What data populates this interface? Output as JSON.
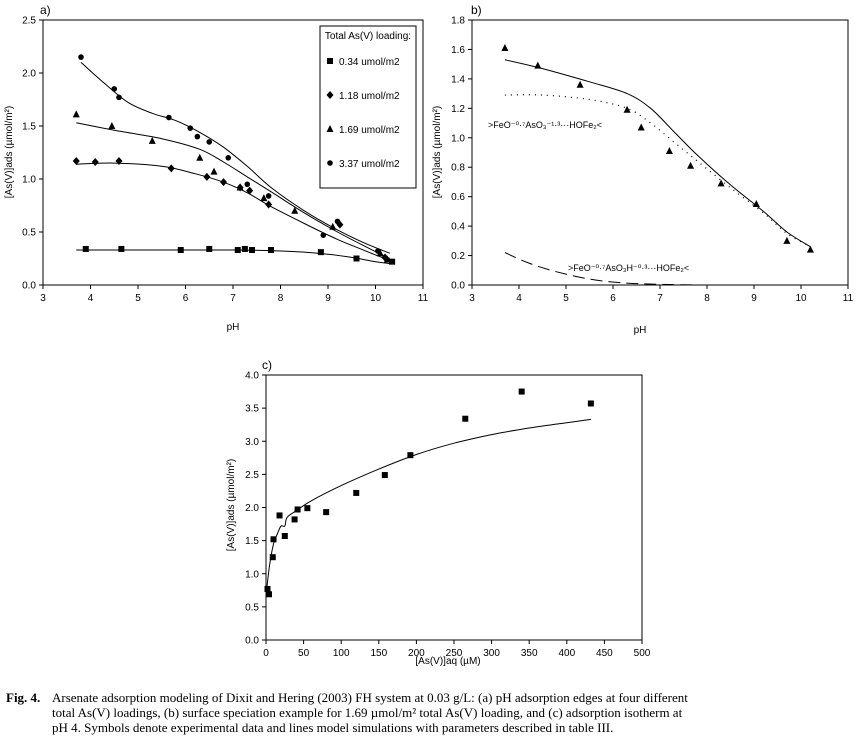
{
  "caption": {
    "fig_label": "Fig. 4.",
    "lines": [
      "Arsenate adsorption modeling of Dixit and Hering (2003) FH system at 0.03 g/L: (a) pH adsorption edges at four different",
      "total As(V) loadings, (b) surface speciation example for 1.69 µmol/m² total As(V) loading, and (c) adsorption isotherm at",
      "pH 4. Symbols denote experimental data and lines model simulations with parameters described in table III."
    ]
  },
  "chart_data": [
    {
      "panel": "a)",
      "type": "scatter",
      "xlabel": "pH",
      "ylabel": "[As(V)]ads (µmol/m²)",
      "xlim": [
        3,
        11
      ],
      "ylim": [
        0,
        2.5
      ],
      "xticks": [
        "3",
        "4",
        "5",
        "6",
        "7",
        "8",
        "9",
        "10",
        "11"
      ],
      "yticks": [
        "0.0",
        "0.5",
        "1.0",
        "1.5",
        "2.0",
        "2.5"
      ],
      "legend_title": "Total As(V) loading:",
      "legend_position": "top-right",
      "series": [
        {
          "name": "0.34 umol/m2",
          "marker": "square",
          "points": [
            [
              3.9,
              0.34
            ],
            [
              4.65,
              0.34
            ],
            [
              5.9,
              0.33
            ],
            [
              6.5,
              0.34
            ],
            [
              7.1,
              0.33
            ],
            [
              7.25,
              0.34
            ],
            [
              7.4,
              0.33
            ],
            [
              7.8,
              0.33
            ],
            [
              8.85,
              0.31
            ],
            [
              9.6,
              0.25
            ],
            [
              10.35,
              0.22
            ]
          ],
          "model": [
            [
              3.7,
              0.33
            ],
            [
              5,
              0.33
            ],
            [
              6,
              0.33
            ],
            [
              7,
              0.33
            ],
            [
              7.8,
              0.325
            ],
            [
              8.5,
              0.31
            ],
            [
              9,
              0.29
            ],
            [
              9.5,
              0.26
            ],
            [
              10,
              0.22
            ],
            [
              10.35,
              0.2
            ]
          ]
        },
        {
          "name": "1.18 umol/m2",
          "marker": "diamond",
          "points": [
            [
              3.7,
              1.17
            ],
            [
              4.1,
              1.16
            ],
            [
              4.6,
              1.17
            ],
            [
              5.7,
              1.1
            ],
            [
              6.45,
              1.02
            ],
            [
              6.8,
              0.97
            ],
            [
              7.15,
              0.92
            ],
            [
              7.35,
              0.89
            ],
            [
              7.75,
              0.76
            ],
            [
              9.25,
              0.57
            ],
            [
              10.2,
              0.26
            ]
          ],
          "model": [
            [
              3.7,
              1.14
            ],
            [
              4.5,
              1.15
            ],
            [
              5.5,
              1.12
            ],
            [
              6.2,
              1.05
            ],
            [
              6.8,
              0.97
            ],
            [
              7.3,
              0.87
            ],
            [
              7.8,
              0.74
            ],
            [
              8.5,
              0.58
            ],
            [
              9.2,
              0.43
            ],
            [
              9.8,
              0.32
            ],
            [
              10.3,
              0.23
            ]
          ]
        },
        {
          "name": "1.69 umol/m2",
          "marker": "triangle",
          "points": [
            [
              3.7,
              1.61
            ],
            [
              4.45,
              1.5
            ],
            [
              5.3,
              1.36
            ],
            [
              6.3,
              1.2
            ],
            [
              6.6,
              1.07
            ],
            [
              7.15,
              0.92
            ],
            [
              7.65,
              0.82
            ],
            [
              8.3,
              0.7
            ],
            [
              9.1,
              0.55
            ],
            [
              10.1,
              0.3
            ],
            [
              10.25,
              0.24
            ]
          ],
          "model": [
            [
              3.7,
              1.53
            ],
            [
              4.5,
              1.46
            ],
            [
              5.5,
              1.38
            ],
            [
              6.3,
              1.28
            ],
            [
              6.8,
              1.16
            ],
            [
              7.3,
              1.02
            ],
            [
              7.8,
              0.88
            ],
            [
              8.5,
              0.68
            ],
            [
              9.2,
              0.5
            ],
            [
              9.8,
              0.36
            ],
            [
              10.3,
              0.25
            ]
          ]
        },
        {
          "name": "3.37 umol/m2",
          "marker": "circle",
          "points": [
            [
              3.8,
              2.15
            ],
            [
              4.5,
              1.85
            ],
            [
              4.6,
              1.77
            ],
            [
              5.65,
              1.58
            ],
            [
              6.1,
              1.48
            ],
            [
              6.25,
              1.4
            ],
            [
              6.5,
              1.35
            ],
            [
              6.9,
              1.2
            ],
            [
              7.3,
              0.95
            ],
            [
              7.75,
              0.84
            ],
            [
              8.9,
              0.47
            ],
            [
              9.2,
              0.6
            ],
            [
              10.05,
              0.32
            ]
          ],
          "model": [
            [
              3.8,
              2.1
            ],
            [
              4.3,
              1.9
            ],
            [
              4.8,
              1.72
            ],
            [
              5.3,
              1.62
            ],
            [
              5.8,
              1.55
            ],
            [
              6.3,
              1.44
            ],
            [
              6.8,
              1.3
            ],
            [
              7.3,
              1.12
            ],
            [
              7.8,
              0.92
            ],
            [
              8.5,
              0.7
            ],
            [
              9.2,
              0.52
            ],
            [
              9.8,
              0.39
            ],
            [
              10.3,
              0.3
            ]
          ]
        }
      ]
    },
    {
      "panel": "b)",
      "type": "scatter",
      "xlabel": "pH",
      "ylabel": "[As(V)]ads (µmol/m²)",
      "xlim": [
        3,
        11
      ],
      "ylim": [
        0,
        1.8
      ],
      "xticks": [
        "3",
        "4",
        "5",
        "6",
        "7",
        "8",
        "9",
        "10",
        "11"
      ],
      "yticks": [
        "0.0",
        "0.2",
        "0.4",
        "0.6",
        "0.8",
        "1.0",
        "1.2",
        "1.4",
        "1.6",
        "1.8"
      ],
      "annotations": [
        ">FeO⁻⁰·⁷AsO₃⁻¹·³···HOFe₂<",
        ">FeO⁻⁰·⁷AsO₃H⁻⁰·³···HOFe₂<"
      ],
      "series": [
        {
          "marker": "triangle",
          "points": [
            [
              3.7,
              1.61
            ],
            [
              4.4,
              1.49
            ],
            [
              5.3,
              1.36
            ],
            [
              6.3,
              1.19
            ],
            [
              6.6,
              1.07
            ],
            [
              7.2,
              0.91
            ],
            [
              7.65,
              0.81
            ],
            [
              8.3,
              0.69
            ],
            [
              9.05,
              0.55
            ],
            [
              9.7,
              0.3
            ],
            [
              10.2,
              0.24
            ]
          ],
          "model_total": [
            [
              3.7,
              1.53
            ],
            [
              4.5,
              1.47
            ],
            [
              5.5,
              1.38
            ],
            [
              6.3,
              1.3
            ],
            [
              6.8,
              1.2
            ],
            [
              7.3,
              1.04
            ],
            [
              7.8,
              0.88
            ],
            [
              8.5,
              0.68
            ],
            [
              9.2,
              0.5
            ],
            [
              9.7,
              0.36
            ],
            [
              10.2,
              0.26
            ]
          ],
          "model_species1": [
            [
              3.7,
              1.29
            ],
            [
              4.5,
              1.29
            ],
            [
              5.5,
              1.26
            ],
            [
              6.3,
              1.2
            ],
            [
              6.8,
              1.1
            ],
            [
              7.3,
              0.97
            ],
            [
              7.8,
              0.84
            ],
            [
              8.5,
              0.66
            ],
            [
              9.2,
              0.49
            ],
            [
              9.7,
              0.35
            ],
            [
              10.2,
              0.26
            ]
          ],
          "model_species2": [
            [
              3.7,
              0.22
            ],
            [
              4.2,
              0.15
            ],
            [
              4.8,
              0.09
            ],
            [
              5.5,
              0.04
            ],
            [
              6.2,
              0.015
            ],
            [
              7,
              0.005
            ],
            [
              8,
              0.0
            ],
            [
              10.2,
              0.0
            ]
          ]
        }
      ]
    },
    {
      "panel": "c)",
      "type": "scatter",
      "xlabel": "[As(V)]aq (µM)",
      "ylabel": "[As(V)]ads (µmol/m²)",
      "xlim": [
        0,
        500
      ],
      "ylim": [
        0,
        4
      ],
      "xticks": [
        "0",
        "50",
        "100",
        "150",
        "200",
        "250",
        "300",
        "350",
        "400",
        "450",
        "500"
      ],
      "yticks": [
        "0.0",
        "0.5",
        "1.0",
        "1.5",
        "2.0",
        "2.5",
        "3.0",
        "3.5",
        "4.0"
      ],
      "series": [
        {
          "marker": "square",
          "points": [
            [
              2,
              0.77
            ],
            [
              4,
              0.69
            ],
            [
              9,
              1.25
            ],
            [
              10,
              1.52
            ],
            [
              18,
              1.88
            ],
            [
              25,
              1.57
            ],
            [
              38,
              1.82
            ],
            [
              42,
              1.97
            ],
            [
              55,
              1.99
            ],
            [
              80,
              1.93
            ],
            [
              120,
              2.22
            ],
            [
              158,
              2.49
            ],
            [
              192,
              2.79
            ],
            [
              265,
              3.34
            ],
            [
              340,
              3.75
            ],
            [
              432,
              3.57
            ]
          ],
          "model": [
            [
              1,
              0.78
            ],
            [
              5,
              1.15
            ],
            [
              10,
              1.45
            ],
            [
              15,
              1.6
            ],
            [
              20,
              1.72
            ],
            [
              25,
              1.72
            ],
            [
              28,
              1.85
            ],
            [
              40,
              1.95
            ],
            [
              60,
              2.1
            ],
            [
              100,
              2.33
            ],
            [
              150,
              2.58
            ],
            [
              200,
              2.8
            ],
            [
              250,
              2.97
            ],
            [
              300,
              3.1
            ],
            [
              350,
              3.2
            ],
            [
              400,
              3.28
            ],
            [
              432,
              3.33
            ]
          ]
        }
      ]
    }
  ]
}
